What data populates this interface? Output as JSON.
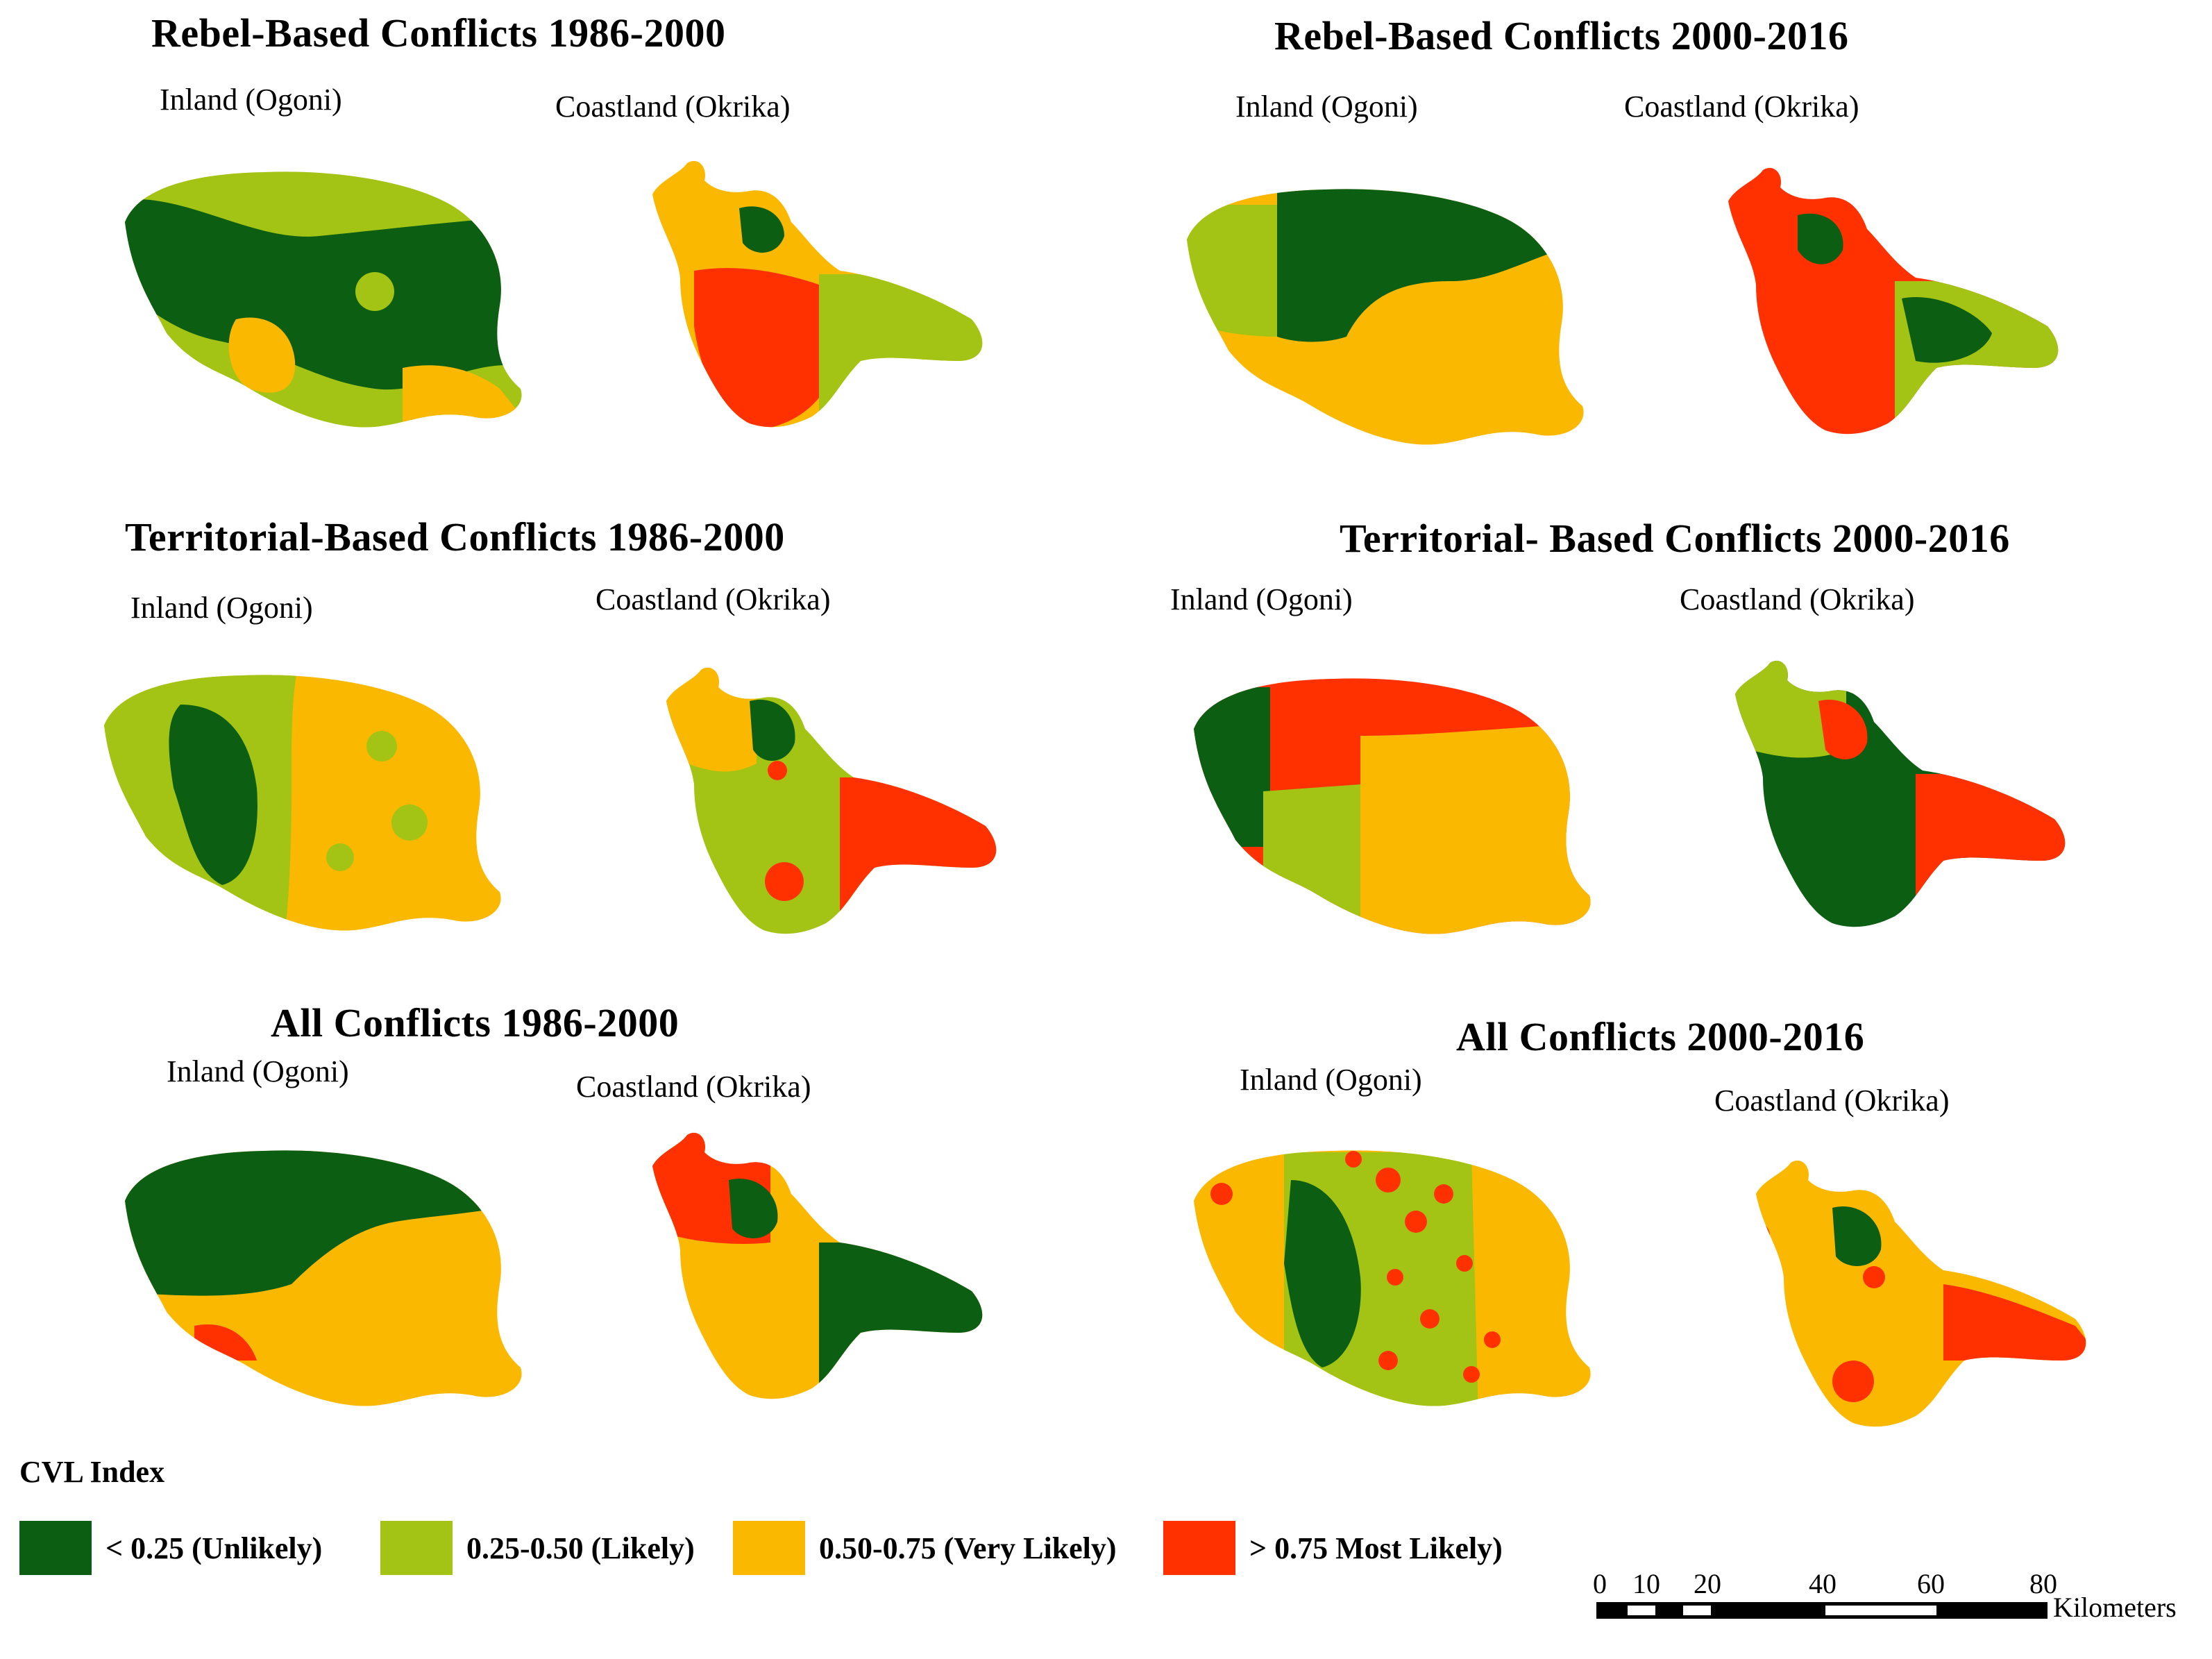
{
  "colors": {
    "unlikely": "#0b5e12",
    "likely": "#a3c414",
    "very_likely": "#fbb800",
    "most_likely": "#ff3100"
  },
  "panels": [
    {
      "title": "Rebel-Based Conflicts 1986-2000",
      "inland": "Inland (Ogoni)",
      "coast": "Coastland (Okrika)"
    },
    {
      "title": "Rebel-Based Conflicts 2000-2016",
      "inland": "Inland (Ogoni)",
      "coast": "Coastland (Okrika)"
    },
    {
      "title": "Territorial-Based Conflicts 1986-2000",
      "inland": "Inland (Ogoni)",
      "coast": "Coastland (Okrika)"
    },
    {
      "title": "Territorial- Based Conflicts 2000-2016",
      "inland": "Inland (Ogoni)",
      "coast": "Coastland (Okrika)"
    },
    {
      "title": "All Conflicts 1986-2000",
      "inland": "Inland (Ogoni)",
      "coast": "Coastland (Okrika)"
    },
    {
      "title": "All Conflicts 2000-2016",
      "inland": "Inland (Ogoni)",
      "coast": "Coastland (Okrika)"
    }
  ],
  "legend": {
    "title": "CVL Index",
    "items": [
      {
        "label": "< 0.25 (Unlikely)",
        "color": "#0b5e12"
      },
      {
        "label": "0.25-0.50 (Likely)",
        "color": "#a3c414"
      },
      {
        "label": "0.50-0.75 (Very Likely)",
        "color": "#fbb800"
      },
      {
        "label": "> 0.75 Most Likely)",
        "color": "#ff3100"
      }
    ]
  },
  "scale": {
    "ticks": [
      "0",
      "10",
      "20",
      "40",
      "60",
      "80"
    ],
    "units": "Kilometers"
  }
}
